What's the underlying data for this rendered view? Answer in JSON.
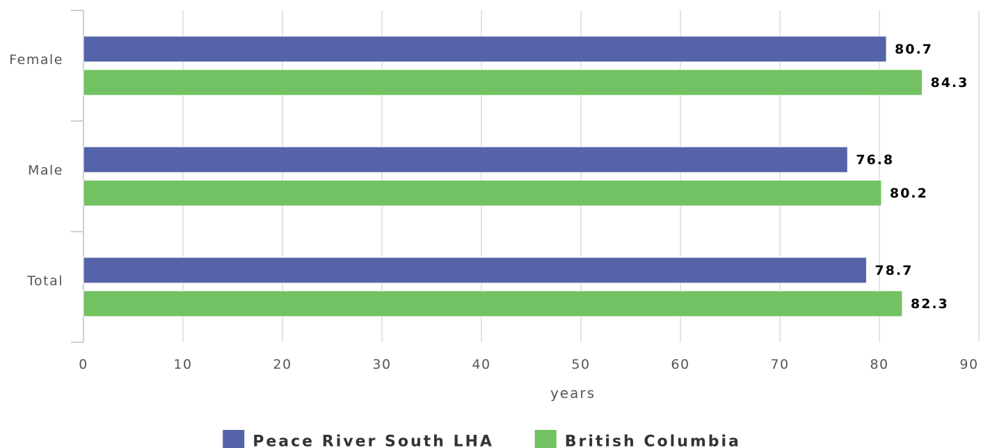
{
  "chart_data": {
    "type": "bar",
    "orientation": "horizontal",
    "categories": [
      "Female",
      "Male",
      "Total"
    ],
    "series": [
      {
        "name": "Peace River South LHA",
        "color": "#5564a8",
        "values": [
          80.7,
          76.8,
          78.7
        ]
      },
      {
        "name": "British Columbia",
        "color": "#72c162",
        "values": [
          84.3,
          80.2,
          82.3
        ]
      }
    ],
    "xlabel": "years",
    "ylabel": "",
    "xlim": [
      0,
      90
    ],
    "x_ticks": [
      0,
      10,
      20,
      30,
      40,
      50,
      60,
      70,
      80,
      90
    ],
    "grid": "vertical",
    "legend_position": "bottom-center",
    "data_labels": true
  }
}
